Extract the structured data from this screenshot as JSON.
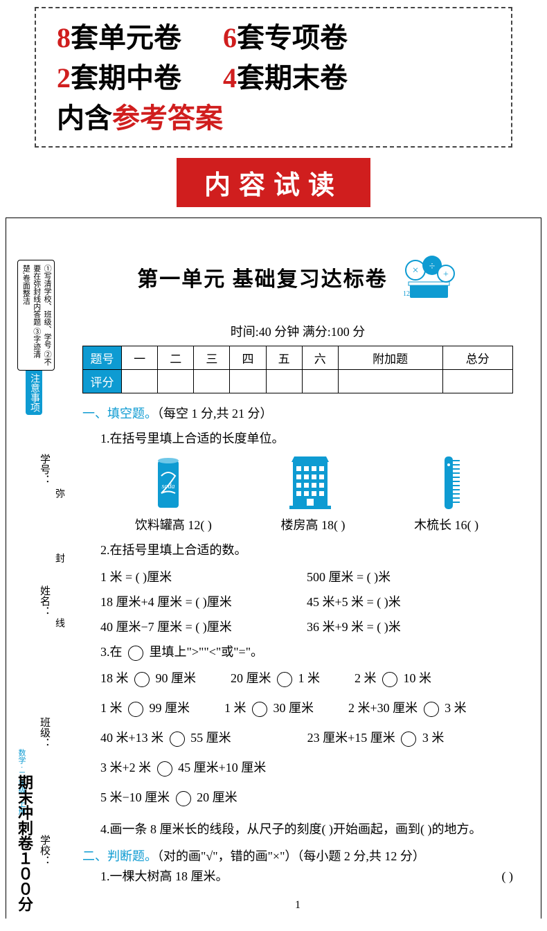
{
  "top": {
    "items": [
      {
        "num": "8",
        "text": "套单元卷"
      },
      {
        "num": "6",
        "text": "套专项卷"
      },
      {
        "num": "2",
        "text": "套期中卷"
      },
      {
        "num": "4",
        "text": "套期末卷"
      }
    ],
    "bottom_prefix": "内含",
    "bottom_red": "参考答案"
  },
  "banner": "内容试读",
  "colors": {
    "accent": "#0e9bd2",
    "red": "#d01e1e"
  },
  "sidebar": {
    "notice_label": "注意事项",
    "notice_lines": [
      "①写清学校、班级、学号",
      "②不要在弥封线内答题",
      "③字迹清楚,卷面整洁"
    ],
    "fields": [
      "学号：",
      "姓名：",
      "班级：",
      "学校："
    ],
    "seal_line": "弥 封 线",
    "book_title": "数学 · 二年级 · 上册",
    "series": "期末冲刺卷１００分"
  },
  "paper": {
    "title": "第一单元  基础复习达标卷",
    "time_score": "时间:40 分钟  满分:100 分",
    "table": {
      "row1_label": "题号",
      "cols": [
        "一",
        "二",
        "三",
        "四",
        "五",
        "六",
        "附加题",
        "总分"
      ],
      "row2_label": "评分"
    },
    "sec1": {
      "head": "一、填空题。",
      "note": "（每空 1 分,共 21 分）",
      "q1": "1.在括号里填上合适的长度单位。",
      "img_labels": [
        "饮料罐高 12(        )",
        "楼房高 18(        )",
        "木梳长 16(        )"
      ],
      "q2": "2.在括号里填上合适的数。",
      "q2_items": [
        "1 米 = (        )厘米",
        "500 厘米 = (        )米",
        "18 厘米+4 厘米 = (        )厘米",
        "45 米+5 米 = (        )米",
        "40 厘米−7 厘米 = (        )厘米",
        "36 米+9 米 = (        )米"
      ],
      "q3_prefix": "3.在 ",
      "q3_suffix": " 里填上\">\"\"<\"或\"=\"。",
      "q3_items": [
        [
          "18 米",
          "90 厘米"
        ],
        [
          "20 厘米",
          "1 米"
        ],
        [
          "2 米",
          "10 米"
        ],
        [
          "1 米",
          "99 厘米"
        ],
        [
          "1 米",
          "30 厘米"
        ],
        [
          "2 米+30 厘米",
          "3 米"
        ],
        [
          "40 米+13 米",
          "55 厘米"
        ],
        [
          "23 厘米+15 厘米",
          "3 米"
        ],
        [
          "3 米+2 米",
          "45 厘米+10 厘米"
        ],
        [
          "5 米−10 厘米",
          "20 厘米"
        ]
      ],
      "q4": "4.画一条 8 厘米长的线段，从尺子的刻度(        )开始画起，画到(        )的地方。"
    },
    "sec2": {
      "head": "二、判断题。",
      "note": "（对的画\"√\"，错的画\"×\"）（每小题 2 分,共 12 分）",
      "q1": "1.一棵大树高 18 厘米。",
      "q1_blank": "(        )"
    },
    "page_number": "1"
  }
}
